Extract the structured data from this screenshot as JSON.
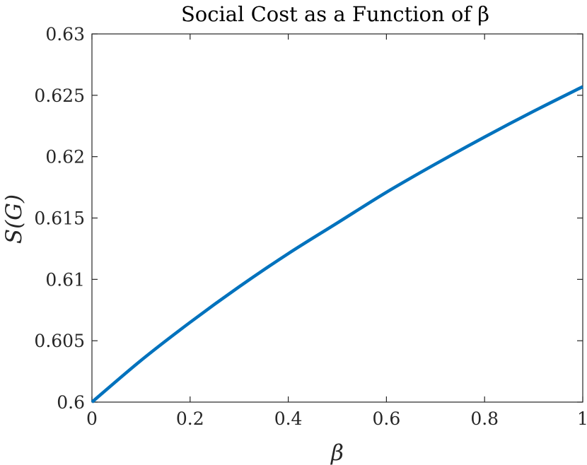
{
  "chart_data": {
    "type": "line",
    "title": "Social Cost as a Function of β",
    "xlabel": "β",
    "ylabel": "S(G)",
    "xlim": [
      0,
      1
    ],
    "ylim": [
      0.6,
      0.63
    ],
    "xticks": [
      "0",
      "0.2",
      "0.4",
      "0.6",
      "0.8",
      "1"
    ],
    "yticks": [
      "0.6",
      "0.605",
      "0.61",
      "0.615",
      "0.62",
      "0.625",
      "0.63"
    ],
    "grid": false,
    "series": [
      {
        "color": "#0072BD",
        "x": [
          0,
          0.1,
          0.2,
          0.3,
          0.4,
          0.5,
          0.6,
          0.7,
          0.8,
          0.9,
          1.0
        ],
        "y": [
          0.6,
          0.6034,
          0.6065,
          0.6094,
          0.6121,
          0.6146,
          0.6171,
          0.6194,
          0.6216,
          0.6237,
          0.6257
        ]
      }
    ]
  }
}
